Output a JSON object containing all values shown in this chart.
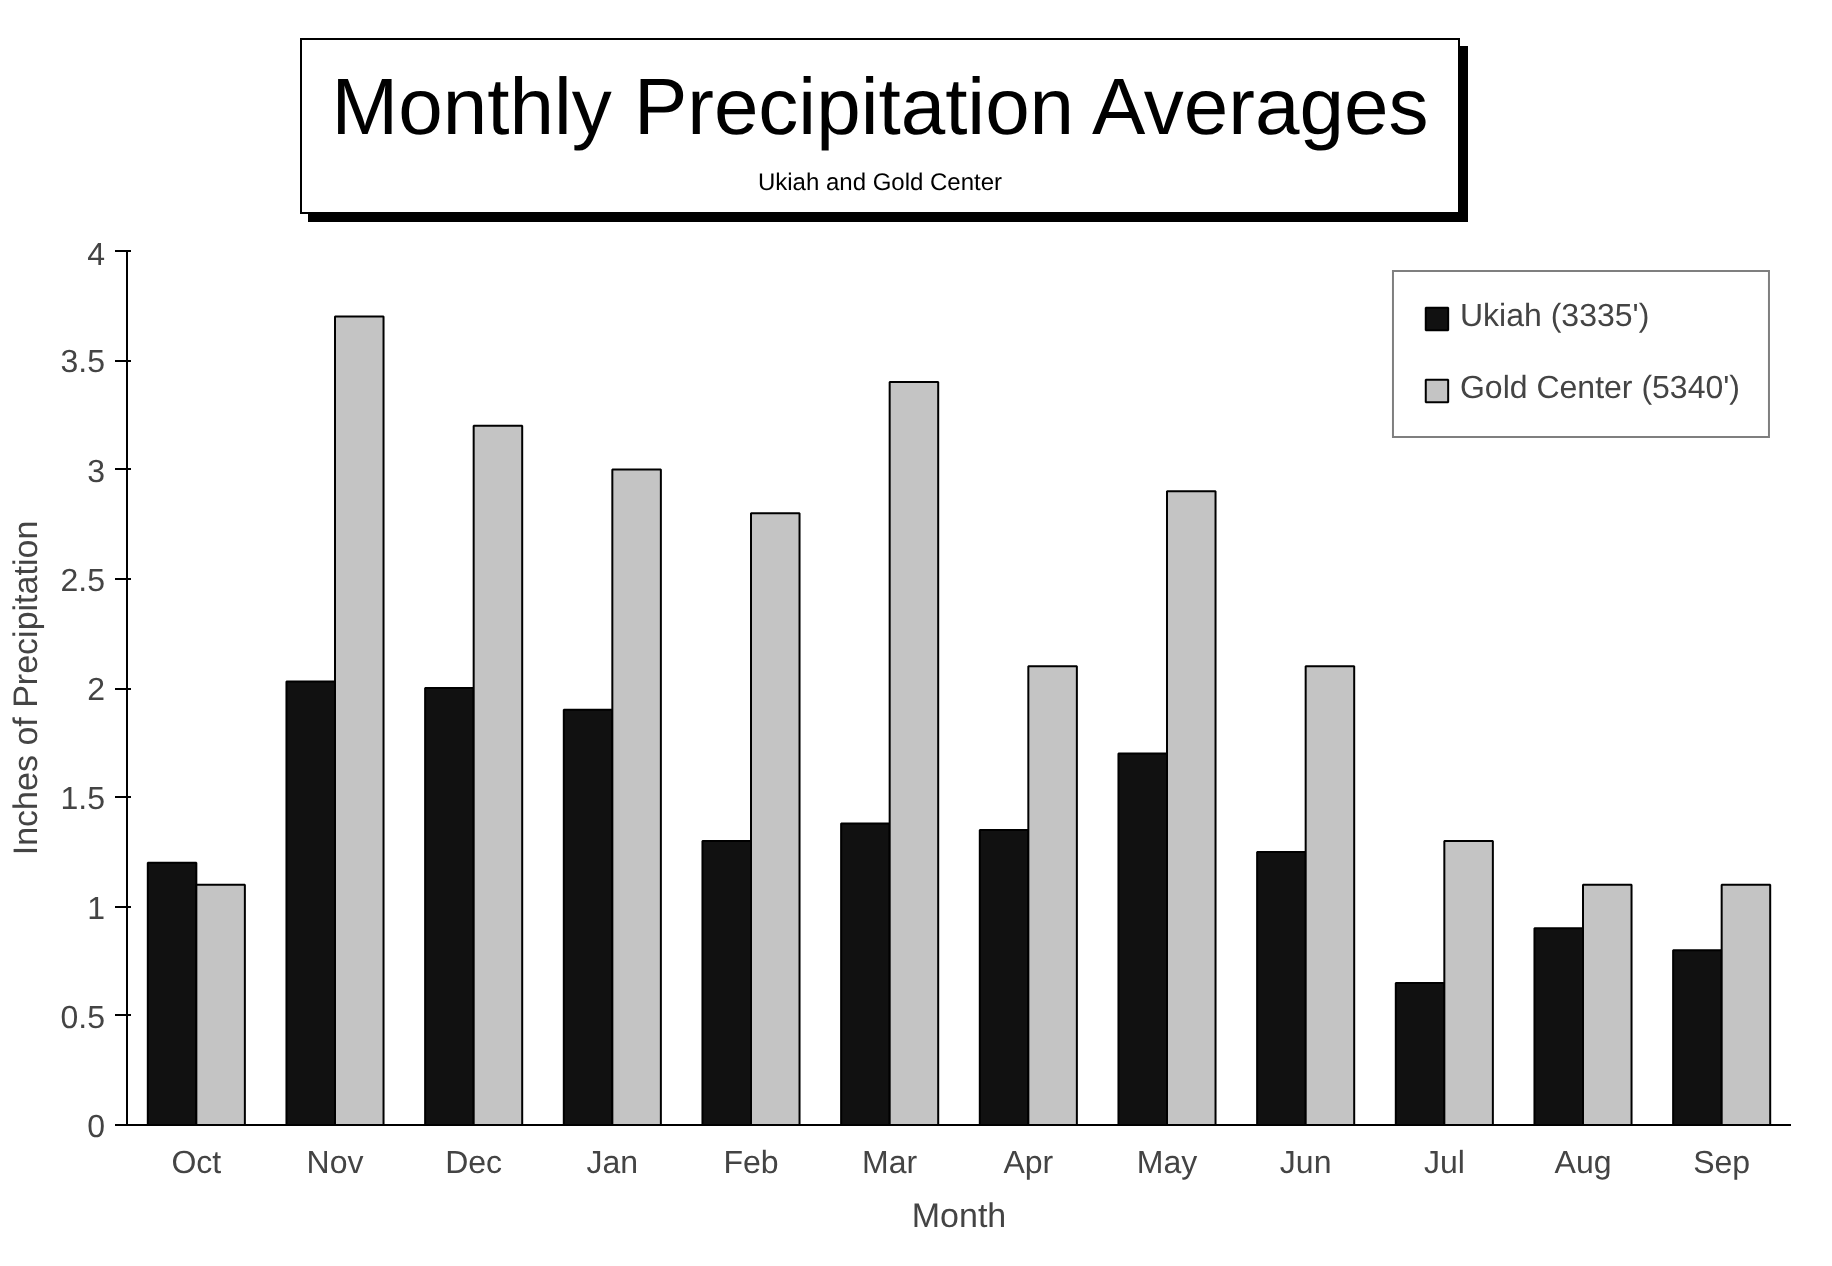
{
  "chart_data": {
    "type": "bar",
    "title": "Monthly Precipitation Averages",
    "subtitle": "Ukiah and Gold Center",
    "xlabel": "Month",
    "ylabel": "Inches of Precipitation",
    "categories": [
      "Oct",
      "Nov",
      "Dec",
      "Jan",
      "Feb",
      "Mar",
      "Apr",
      "May",
      "Jun",
      "Jul",
      "Aug",
      "Sep"
    ],
    "series": [
      {
        "name": "Ukiah (3335')",
        "color": "#111111",
        "values": [
          1.2,
          2.03,
          2.0,
          1.9,
          1.3,
          1.38,
          1.35,
          1.7,
          1.25,
          0.65,
          0.9,
          0.8
        ]
      },
      {
        "name": "Gold Center (5340')",
        "color": "#c4c4c4",
        "values": [
          1.1,
          3.7,
          3.2,
          3.0,
          2.8,
          3.4,
          2.1,
          2.9,
          2.1,
          1.3,
          1.1,
          1.1
        ]
      }
    ],
    "ylim": [
      0,
      4
    ],
    "yticks": [
      0,
      0.5,
      1,
      1.5,
      2,
      2.5,
      3,
      3.5,
      4
    ],
    "grid": false,
    "legend": "top right"
  }
}
